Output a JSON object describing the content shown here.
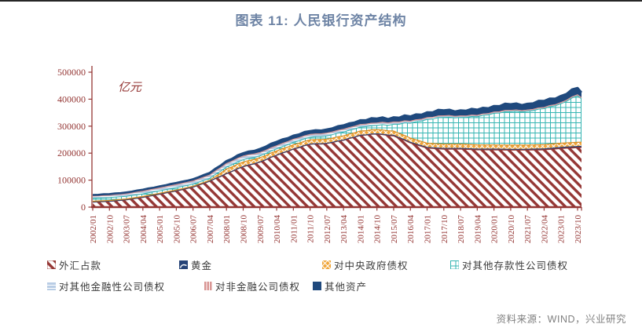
{
  "page": {
    "title": "图表 11: 人民银行资产结构",
    "title_color": "#6E84A5",
    "source": "资料来源：WIND，兴业研究",
    "source_color": "#7F7F7F"
  },
  "chart_data": {
    "type": "area",
    "stacked": true,
    "title": "图表 11: 人民银行资产结构",
    "unit_label": "亿元",
    "grid": false,
    "legend_position": "bottom",
    "y_axis": {
      "min": 0,
      "max": 500000,
      "step": 100000,
      "tick_labels": [
        "0",
        "100000",
        "200000",
        "300000",
        "400000",
        "500000"
      ],
      "color": "#943634"
    },
    "x_axis": {
      "color": "#943634",
      "tick_labels": [
        "2002/01",
        "2002/10",
        "2003/07",
        "2004/04",
        "2005/01",
        "2005/10",
        "2006/07",
        "2007/04",
        "2008/01",
        "2008/10",
        "2009/07",
        "2010/04",
        "2011/01",
        "2011/10",
        "2012/07",
        "2013/04",
        "2014/01",
        "2014/10",
        "2015/07",
        "2016/04",
        "2017/01",
        "2017/10",
        "2018/07",
        "2019/04",
        "2020/01",
        "2020/10",
        "2021/07",
        "2022/04",
        "2023/01",
        "2023/10"
      ]
    },
    "series": [
      {
        "key": "fx",
        "name": "外汇占款",
        "pattern": "diag-down",
        "color": "#953735",
        "stroke": "#953735",
        "line_width": 1.4,
        "values": [
          18800,
          21500,
          27000,
          36000,
          48000,
          60000,
          74000,
          96000,
          124000,
          150000,
          167000,
          192000,
          215000,
          233000,
          236000,
          248000,
          266000,
          271000,
          264000,
          238000,
          219000,
          215200,
          215300,
          212500,
          212300,
          211500,
          211500,
          212500,
          217500,
          220500,
          221000
        ]
      },
      {
        "key": "gold",
        "name": "黄金",
        "pattern": "solid",
        "color": "#264478",
        "stroke": "#264478",
        "line_width": 1,
        "values": [
          340,
          340,
          340,
          600,
          600,
          600,
          600,
          600,
          600,
          600,
          600,
          670,
          670,
          670,
          670,
          670,
          670,
          670,
          2600,
          2600,
          2700,
          2800,
          2800,
          2900,
          3000,
          3100,
          3200,
          3900,
          4100,
          4400,
          4500
        ]
      },
      {
        "key": "gov",
        "name": "对中央政府债权",
        "pattern": "diag-cross",
        "color": "#F0A73E",
        "stroke": "#D98C21",
        "line_width": 1.2,
        "values": [
          2800,
          2800,
          2900,
          2900,
          2900,
          2900,
          2900,
          2900,
          16300,
          16300,
          15400,
          15400,
          15400,
          15400,
          15400,
          15400,
          15400,
          15400,
          15400,
          15300,
          15300,
          15300,
          15300,
          15300,
          15300,
          15300,
          15300,
          15300,
          15300,
          15300,
          15300
        ]
      },
      {
        "key": "odc",
        "name": "对其他存款性公司债权",
        "pattern": "grid",
        "color": "#35B5B2",
        "stroke": "#35B5B2",
        "line_width": 1,
        "values": [
          11000,
          10500,
          10000,
          9500,
          9000,
          8500,
          7500,
          7000,
          7500,
          8500,
          7000,
          7500,
          9000,
          9500,
          12000,
          14000,
          14500,
          15500,
          25000,
          55000,
          88000,
          99000,
          99000,
          104000,
          117000,
          124000,
          125000,
          133000,
          146000,
          172000,
          160000
        ]
      },
      {
        "key": "ofc",
        "name": "对其他金融性公司债权",
        "pattern": "horiz",
        "color": "#B9CDE5",
        "stroke": "#95B3D7",
        "line_width": 1,
        "values": [
          8000,
          8500,
          9000,
          10000,
          10500,
          11000,
          11500,
          12000,
          13000,
          13500,
          12000,
          11500,
          11000,
          10500,
          10000,
          10000,
          9500,
          9000,
          8500,
          7000,
          6500,
          6000,
          5500,
          5000,
          4800,
          4600,
          4500,
          4300,
          4200,
          4100,
          4000
        ]
      },
      {
        "key": "nfc",
        "name": "对非金融公司债权",
        "pattern": "vert",
        "color": "#D99694",
        "stroke": "#D99694",
        "line_width": 1.2,
        "values": [
          40,
          40,
          40,
          40,
          40,
          40,
          40,
          40,
          40,
          40,
          40,
          40,
          40,
          40,
          40,
          40,
          40,
          40,
          40,
          40,
          40,
          40,
          40,
          40,
          40,
          40,
          40,
          40,
          40,
          40,
          40
        ]
      },
      {
        "key": "other",
        "name": "其他资产",
        "pattern": "solid",
        "color": "#1F497D",
        "stroke": "#1F497D",
        "line_width": 2.6,
        "values": [
          4000,
          4500,
          5000,
          5500,
          6000,
          6500,
          7000,
          8500,
          9500,
          11000,
          14000,
          15000,
          14000,
          13000,
          14000,
          15000,
          16000,
          17000,
          17500,
          18500,
          20000,
          20500,
          21000,
          21500,
          22500,
          23000,
          23500,
          24500,
          25000,
          25500,
          20000
        ]
      }
    ]
  },
  "legend": {
    "rows": [
      [
        "fx",
        "gold",
        "gov",
        "odc"
      ],
      [
        "ofc",
        "nfc",
        "other"
      ]
    ]
  },
  "render_hints": {
    "x_extension_points": 1,
    "jitter": [
      0.85,
      -0.6,
      0.95,
      -0.8,
      0.5,
      -0.95,
      0.7,
      -0.45,
      0.9,
      -0.75,
      0.55,
      -0.85
    ]
  }
}
